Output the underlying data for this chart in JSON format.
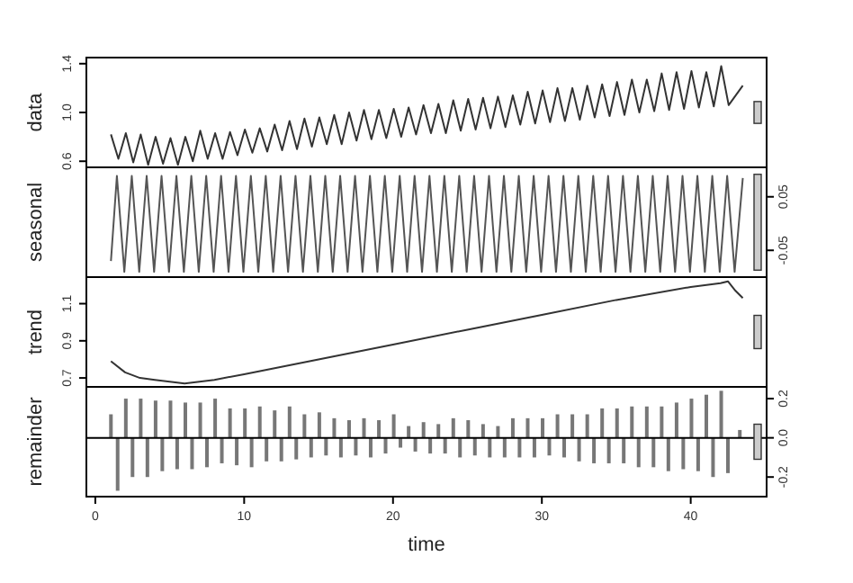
{
  "chart_data": [
    {
      "type": "line",
      "ylabel": "data",
      "xlim": [
        -0.6,
        45.1
      ],
      "ylim": [
        0.55,
        1.45
      ],
      "yticks": [
        {
          "value": 0.6,
          "label": "0.6"
        },
        {
          "value": 1.0,
          "label": "1.0"
        },
        {
          "value": 1.4,
          "label": "1.4"
        }
      ],
      "tick_labels": "y",
      "series": [
        {
          "color": "#333333",
          "x": [
            1.05,
            1.55,
            2.05,
            2.55,
            3.05,
            3.55,
            4.05,
            4.55,
            5.05,
            5.55,
            6.05,
            6.55,
            7.05,
            7.55,
            8.05,
            8.55,
            9.05,
            9.55,
            10.05,
            10.55,
            11.05,
            11.55,
            12.05,
            12.55,
            13.05,
            13.55,
            14.05,
            14.55,
            15.05,
            15.55,
            16.05,
            16.55,
            17.05,
            17.55,
            18.05,
            18.55,
            19.05,
            19.55,
            20.05,
            20.55,
            21.05,
            21.55,
            22.05,
            22.55,
            23.05,
            23.55,
            24.05,
            24.55,
            25.05,
            25.55,
            26.05,
            26.55,
            27.05,
            27.55,
            28.05,
            28.55,
            29.05,
            29.55,
            30.05,
            30.55,
            31.05,
            31.55,
            32.05,
            32.55,
            33.05,
            33.55,
            34.05,
            34.55,
            35.05,
            35.55,
            36.05,
            36.55,
            37.05,
            37.55,
            38.05,
            38.55,
            39.05,
            39.55,
            40.05,
            40.55,
            41.05,
            41.55,
            42.05,
            42.55,
            43.5
          ],
          "values": [
            0.82,
            0.62,
            0.83,
            0.59,
            0.82,
            0.57,
            0.8,
            0.58,
            0.79,
            0.57,
            0.8,
            0.6,
            0.85,
            0.62,
            0.83,
            0.62,
            0.84,
            0.65,
            0.86,
            0.67,
            0.87,
            0.68,
            0.9,
            0.69,
            0.93,
            0.7,
            0.95,
            0.72,
            0.96,
            0.74,
            0.98,
            0.74,
            1.0,
            0.77,
            1.02,
            0.78,
            1.02,
            0.79,
            1.03,
            0.8,
            1.04,
            0.82,
            1.06,
            0.83,
            1.07,
            0.83,
            1.1,
            0.85,
            1.11,
            0.86,
            1.12,
            0.87,
            1.13,
            0.88,
            1.14,
            0.9,
            1.17,
            0.91,
            1.18,
            0.92,
            1.2,
            0.93,
            1.2,
            0.94,
            1.22,
            0.96,
            1.23,
            0.97,
            1.25,
            0.98,
            1.27,
            1.0,
            1.27,
            1.01,
            1.32,
            1.02,
            1.33,
            1.03,
            1.34,
            1.04,
            1.33,
            1.05,
            1.38,
            1.06,
            1.22
          ]
        }
      ]
    },
    {
      "type": "line",
      "ylabel": "seasonal",
      "xlim": [
        -0.6,
        45.1
      ],
      "y2lim": [
        -0.1,
        0.105
      ],
      "y2ticks": [
        {
          "value": -0.05,
          "label": "-0.05"
        },
        {
          "value": 0.05,
          "label": "0.05"
        }
      ],
      "tick_labels": "y",
      "series": [
        {
          "color": "#555555",
          "axis": "y2",
          "x": [
            1.05,
            1.45,
            1.95,
            2.45,
            2.95,
            3.45,
            3.95,
            4.45,
            4.95,
            5.45,
            5.95,
            6.45,
            6.95,
            7.45,
            7.95,
            8.45,
            8.95,
            9.45,
            9.95,
            10.45,
            10.95,
            11.45,
            11.95,
            12.45,
            12.95,
            13.45,
            13.95,
            14.45,
            14.95,
            15.45,
            15.95,
            16.45,
            16.95,
            17.45,
            17.95,
            18.45,
            18.95,
            19.45,
            19.95,
            20.45,
            20.95,
            21.45,
            21.95,
            22.45,
            22.95,
            23.45,
            23.95,
            24.45,
            24.95,
            25.45,
            25.95,
            26.45,
            26.95,
            27.45,
            27.95,
            28.45,
            28.95,
            29.45,
            29.95,
            30.45,
            30.95,
            31.45,
            31.95,
            32.45,
            32.95,
            33.45,
            33.95,
            34.45,
            34.95,
            35.45,
            35.95,
            36.45,
            36.95,
            37.45,
            37.95,
            38.45,
            38.95,
            39.45,
            39.95,
            40.45,
            40.95,
            41.45,
            41.95,
            42.45,
            42.95,
            43.5
          ],
          "values": [
            -0.07,
            0.089,
            -0.09,
            0.089,
            -0.09,
            0.089,
            -0.09,
            0.089,
            -0.09,
            0.089,
            -0.09,
            0.089,
            -0.09,
            0.089,
            -0.09,
            0.089,
            -0.09,
            0.089,
            -0.09,
            0.089,
            -0.09,
            0.089,
            -0.09,
            0.089,
            -0.09,
            0.089,
            -0.09,
            0.089,
            -0.09,
            0.089,
            -0.09,
            0.089,
            -0.09,
            0.089,
            -0.09,
            0.089,
            -0.09,
            0.089,
            -0.09,
            0.089,
            -0.09,
            0.089,
            -0.09,
            0.089,
            -0.09,
            0.089,
            -0.09,
            0.089,
            -0.09,
            0.089,
            -0.09,
            0.089,
            -0.09,
            0.089,
            -0.09,
            0.089,
            -0.09,
            0.089,
            -0.09,
            0.089,
            -0.09,
            0.089,
            -0.09,
            0.089,
            -0.09,
            0.089,
            -0.09,
            0.089,
            -0.09,
            0.089,
            -0.09,
            0.089,
            -0.09,
            0.089,
            -0.09,
            0.089,
            -0.09,
            0.089,
            -0.09,
            0.089,
            -0.09,
            0.089,
            -0.09,
            0.089,
            -0.09,
            0.085
          ]
        }
      ]
    },
    {
      "type": "line",
      "ylabel": "trend",
      "xlim": [
        -0.6,
        45.1
      ],
      "ylim": [
        0.652,
        1.243
      ],
      "yticks": [
        0.7,
        0.9,
        1.1
      ],
      "tick_labels": "y",
      "series": [
        {
          "color": "#333333",
          "x": [
            1.05,
            2,
            3,
            4,
            5,
            6,
            7,
            8,
            10,
            15,
            20,
            25,
            30,
            35,
            40,
            42,
            42.5,
            43,
            43.5
          ],
          "values": [
            0.79,
            0.73,
            0.7,
            0.69,
            0.68,
            0.67,
            0.68,
            0.69,
            0.72,
            0.8,
            0.88,
            0.96,
            1.04,
            1.12,
            1.19,
            1.21,
            1.22,
            1.17,
            1.13
          ]
        }
      ]
    },
    {
      "type": "bar",
      "ylabel": "remainder",
      "xlabel": "time",
      "xlim": [
        -0.6,
        45.1
      ],
      "xticks": [
        0,
        10,
        20,
        30,
        40
      ],
      "y2lim": [
        -0.3,
        0.26
      ],
      "y2ticks": [
        {
          "value": -0.2,
          "label": "-0.2"
        },
        {
          "value": 0,
          "label": "0.0"
        },
        {
          "value": 0.2,
          "label": "0.2"
        }
      ],
      "ref_lines": [
        {
          "axis": "y2",
          "value": 0
        }
      ],
      "series": [
        {
          "color": "#777777",
          "axis": "y2",
          "x": [
            1.05,
            1.5,
            2.05,
            2.5,
            3.05,
            3.5,
            4.05,
            4.5,
            5.05,
            5.5,
            6.05,
            6.5,
            7.05,
            7.5,
            8.05,
            8.5,
            9.05,
            9.5,
            10.05,
            10.5,
            11.05,
            11.5,
            12.05,
            12.5,
            13.05,
            13.5,
            14.05,
            14.5,
            15.05,
            15.5,
            16.05,
            16.5,
            17.05,
            17.5,
            18.05,
            18.5,
            19.05,
            19.5,
            20.05,
            20.5,
            21.05,
            21.5,
            22.05,
            22.5,
            23.05,
            23.5,
            24.05,
            24.5,
            25.05,
            25.5,
            26.05,
            26.5,
            27.05,
            27.5,
            28.05,
            28.5,
            29.05,
            29.5,
            30.05,
            30.5,
            31.05,
            31.5,
            32.05,
            32.5,
            33.05,
            33.5,
            34.05,
            34.5,
            35.05,
            35.5,
            36.05,
            36.5,
            37.05,
            37.5,
            38.05,
            38.5,
            39.05,
            39.5,
            40.05,
            40.5,
            41.05,
            41.5,
            42.05,
            42.5,
            43.3
          ],
          "values": [
            0.12,
            -0.27,
            0.2,
            -0.2,
            0.2,
            -0.2,
            0.19,
            -0.17,
            0.19,
            -0.16,
            0.18,
            -0.16,
            0.18,
            -0.15,
            0.2,
            -0.13,
            0.15,
            -0.14,
            0.15,
            -0.15,
            0.16,
            -0.12,
            0.14,
            -0.12,
            0.16,
            -0.11,
            0.12,
            -0.1,
            0.13,
            -0.09,
            0.1,
            -0.1,
            0.09,
            -0.09,
            0.1,
            -0.1,
            0.09,
            -0.08,
            0.12,
            -0.05,
            0.06,
            -0.07,
            0.08,
            -0.08,
            0.07,
            -0.08,
            0.1,
            -0.1,
            0.09,
            -0.09,
            0.07,
            -0.1,
            0.06,
            -0.1,
            0.1,
            -0.1,
            0.1,
            -0.1,
            0.1,
            -0.09,
            0.12,
            -0.1,
            0.12,
            -0.12,
            0.12,
            -0.13,
            0.15,
            -0.13,
            0.15,
            -0.13,
            0.16,
            -0.15,
            0.16,
            -0.15,
            0.16,
            -0.17,
            0.18,
            -0.16,
            0.2,
            -0.17,
            0.22,
            -0.2,
            0.24,
            -0.18,
            0.04
          ]
        }
      ]
    }
  ]
}
